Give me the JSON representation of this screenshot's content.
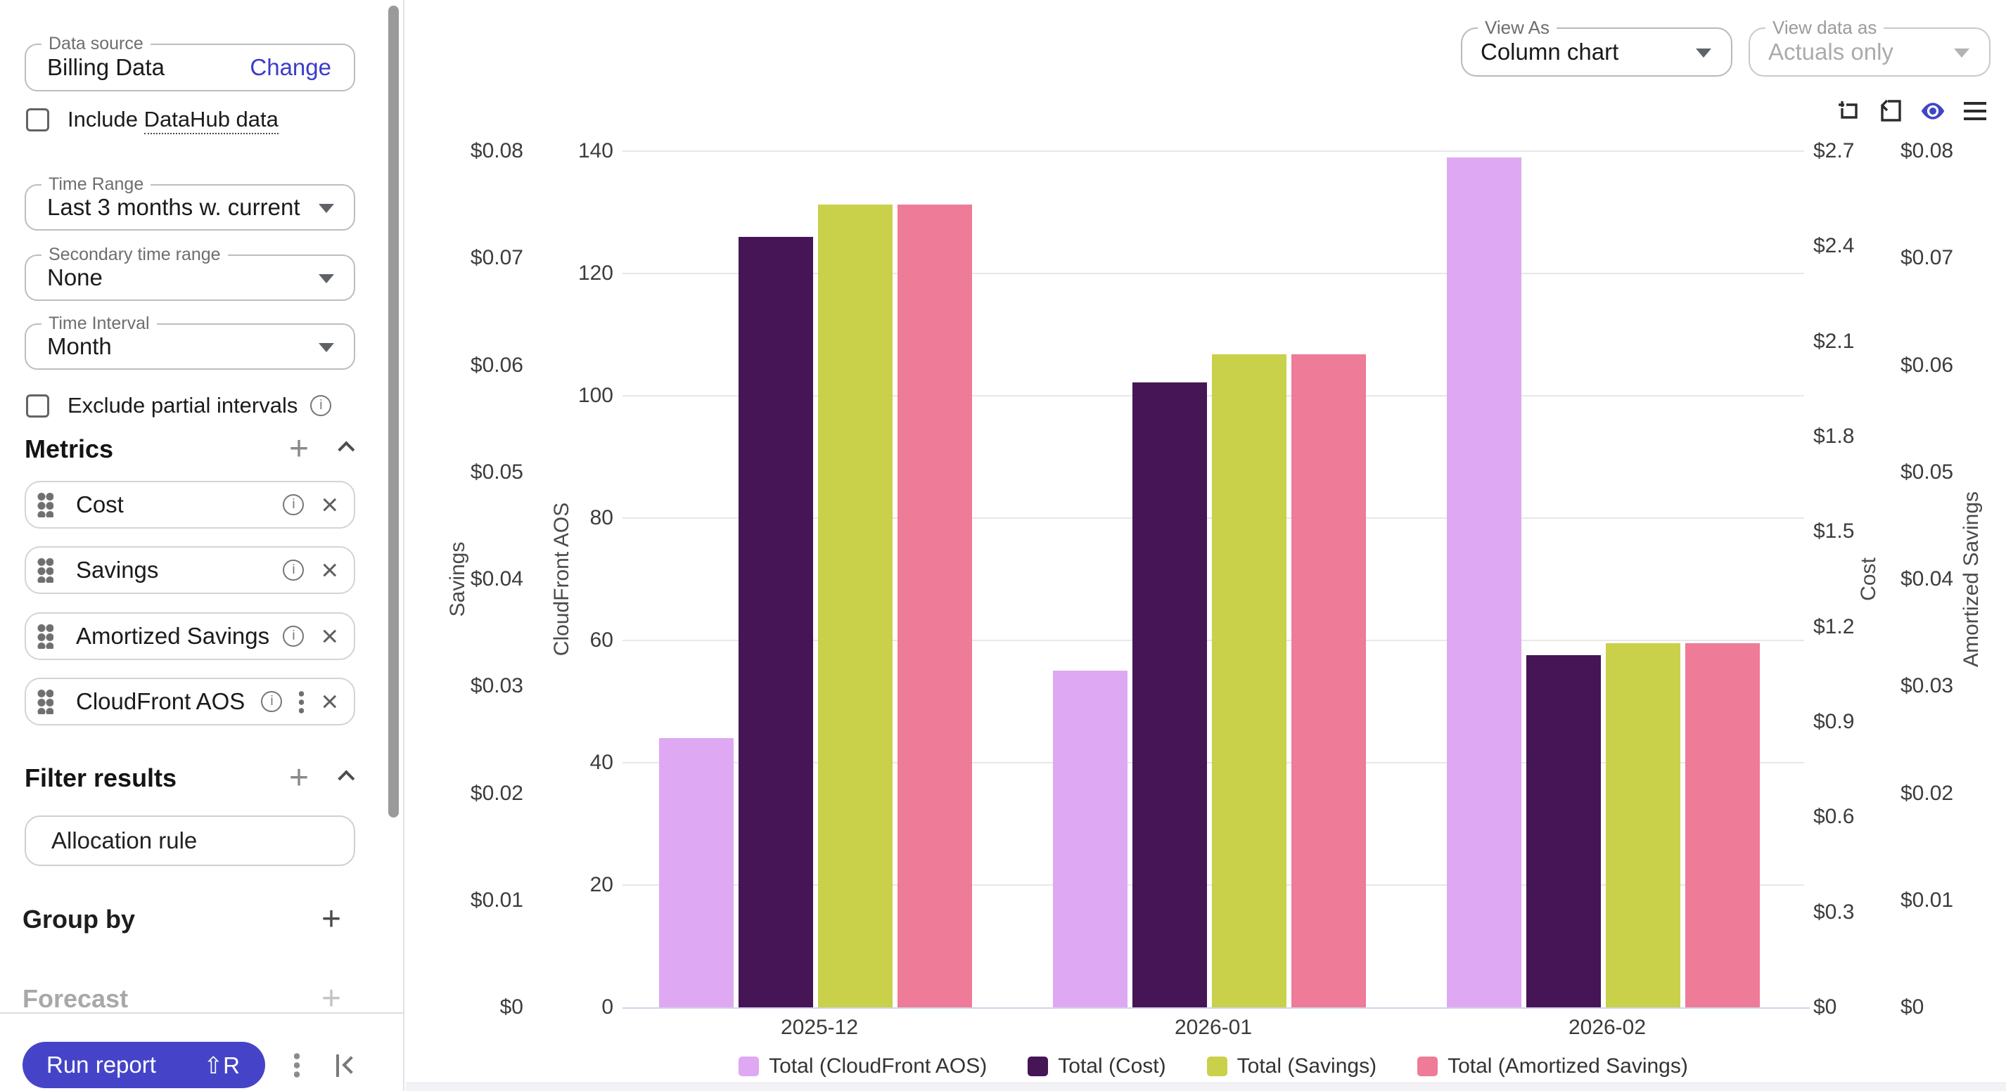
{
  "sidebar": {
    "data_source": {
      "label": "Data source",
      "value": "Billing Data",
      "action": "Change"
    },
    "include_datahub": {
      "prefix": "Include ",
      "link_text": "DataHub data"
    },
    "time_range": {
      "label": "Time Range",
      "value": "Last 3 months w. current"
    },
    "secondary_time_range": {
      "label": "Secondary time range",
      "value": "None"
    },
    "time_interval": {
      "label": "Time Interval",
      "value": "Month"
    },
    "exclude_partial": {
      "label": "Exclude partial intervals"
    },
    "metrics": {
      "title": "Metrics",
      "items": [
        {
          "label": "Cost"
        },
        {
          "label": "Savings"
        },
        {
          "label": "Amortized Savings"
        },
        {
          "label": "CloudFront AOS",
          "has_menu": true
        }
      ]
    },
    "filter_results": {
      "title": "Filter results",
      "items": [
        {
          "label": "Allocation rule"
        }
      ]
    },
    "group_by": {
      "label": "Group by"
    },
    "forecast": {
      "label": "Forecast"
    },
    "footer": {
      "run_label": "Run report",
      "shortcut": "⇧R"
    }
  },
  "header": {
    "view_as": {
      "label": "View As",
      "value": "Column chart"
    },
    "view_data_as": {
      "label": "View data as",
      "value": "Actuals only"
    }
  },
  "colors": {
    "accent": "#4544c8",
    "link": "#3b3bcb",
    "eye_icon": "#3f46c6",
    "cloudfront_series": "#dfa8f2",
    "cost_series": "#451556",
    "savings_series": "#c9d04a",
    "amortized_series": "#ee7b97"
  },
  "chart_data": {
    "type": "bar",
    "title": "",
    "categories": [
      "2025-12",
      "2026-01",
      "2026-02"
    ],
    "series": [
      {
        "name": "Total (CloudFront AOS)",
        "color": "#dfa8f2",
        "axis": "cloudfront",
        "values": [
          44,
          55,
          139
        ]
      },
      {
        "name": "Total (Cost)",
        "color": "#451556",
        "axis": "cost",
        "values": [
          2.43,
          1.97,
          1.11
        ]
      },
      {
        "name": "Total (Savings)",
        "color": "#c9d04a",
        "axis": "savings",
        "values": [
          0.075,
          0.061,
          0.034
        ]
      },
      {
        "name": "Total (Amortized Savings)",
        "color": "#ee7b97",
        "axis": "amortized",
        "values": [
          0.075,
          0.061,
          0.034
        ]
      }
    ],
    "axes": [
      {
        "id": "savings",
        "side": "left",
        "title": "Savings",
        "min": 0,
        "max": 0.08,
        "ticks": [
          "$0.08",
          "$0.07",
          "$0.06",
          "$0.05",
          "$0.04",
          "$0.03",
          "$0.02",
          "$0.01",
          "$0"
        ]
      },
      {
        "id": "cloudfront",
        "side": "left",
        "title": "CloudFront AOS",
        "min": 0,
        "max": 140,
        "ticks": [
          "140",
          "120",
          "100",
          "80",
          "60",
          "40",
          "20",
          "0"
        ],
        "gridlines": true
      },
      {
        "id": "cost",
        "side": "right",
        "title": "Cost",
        "min": 0,
        "max": 2.7,
        "ticks": [
          "$2.7",
          "$2.4",
          "$2.1",
          "$1.8",
          "$1.5",
          "$1.2",
          "$0.9",
          "$0.6",
          "$0.3",
          "$0"
        ]
      },
      {
        "id": "amortized",
        "side": "right",
        "title": "Amortized Savings",
        "min": 0,
        "max": 0.08,
        "ticks": [
          "$0.08",
          "$0.07",
          "$0.06",
          "$0.05",
          "$0.04",
          "$0.03",
          "$0.02",
          "$0.01",
          "$0"
        ]
      }
    ],
    "legend_position": "bottom",
    "grid": true
  }
}
